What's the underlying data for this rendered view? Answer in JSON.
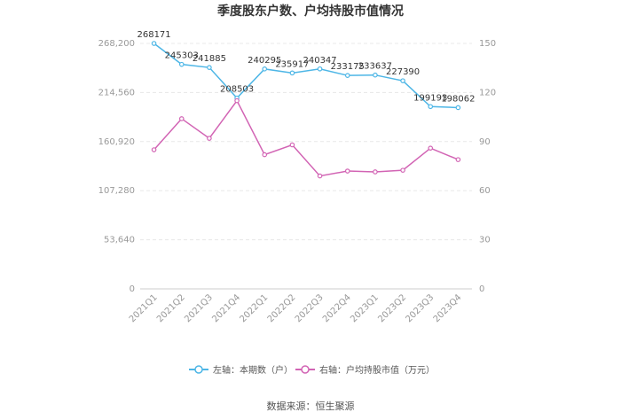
{
  "chart_data": {
    "type": "line",
    "title": "季度股东户数、户均持股市值情况",
    "categories": [
      "2021Q1",
      "2021Q2",
      "2021Q3",
      "2021Q4",
      "2022Q1",
      "2022Q2",
      "2022Q3",
      "2022Q4",
      "2023Q1",
      "2023Q2",
      "2023Q3",
      "2023Q4"
    ],
    "left_axis": {
      "ticks": [
        "0",
        "53,640",
        "107,280",
        "160,920",
        "214,560",
        "268,200"
      ],
      "ylim": [
        0,
        268200
      ]
    },
    "right_axis": {
      "ticks": [
        "0",
        "30",
        "60",
        "90",
        "120",
        "150"
      ],
      "ylim": [
        0,
        150
      ]
    },
    "series": [
      {
        "name": "左轴：本期数（户）",
        "axis": "left",
        "color": "#4db6e6",
        "values": [
          268171,
          245303,
          241885,
          208503,
          240295,
          235917,
          240347,
          233175,
          233637,
          227390,
          199193,
          198062
        ],
        "labels": [
          "268171",
          "245303",
          "241885",
          "208503",
          "240295",
          "235917",
          "240347",
          "233175",
          "233637",
          "227390",
          "199193",
          "198062"
        ]
      },
      {
        "name": "右轴：户均持股市值（万元）",
        "axis": "right",
        "color": "#d264b4",
        "values": [
          85,
          104,
          92,
          115,
          82,
          88,
          69,
          72,
          71.5,
          72.5,
          86,
          79
        ]
      }
    ],
    "source": "数据来源：恒生聚源"
  }
}
